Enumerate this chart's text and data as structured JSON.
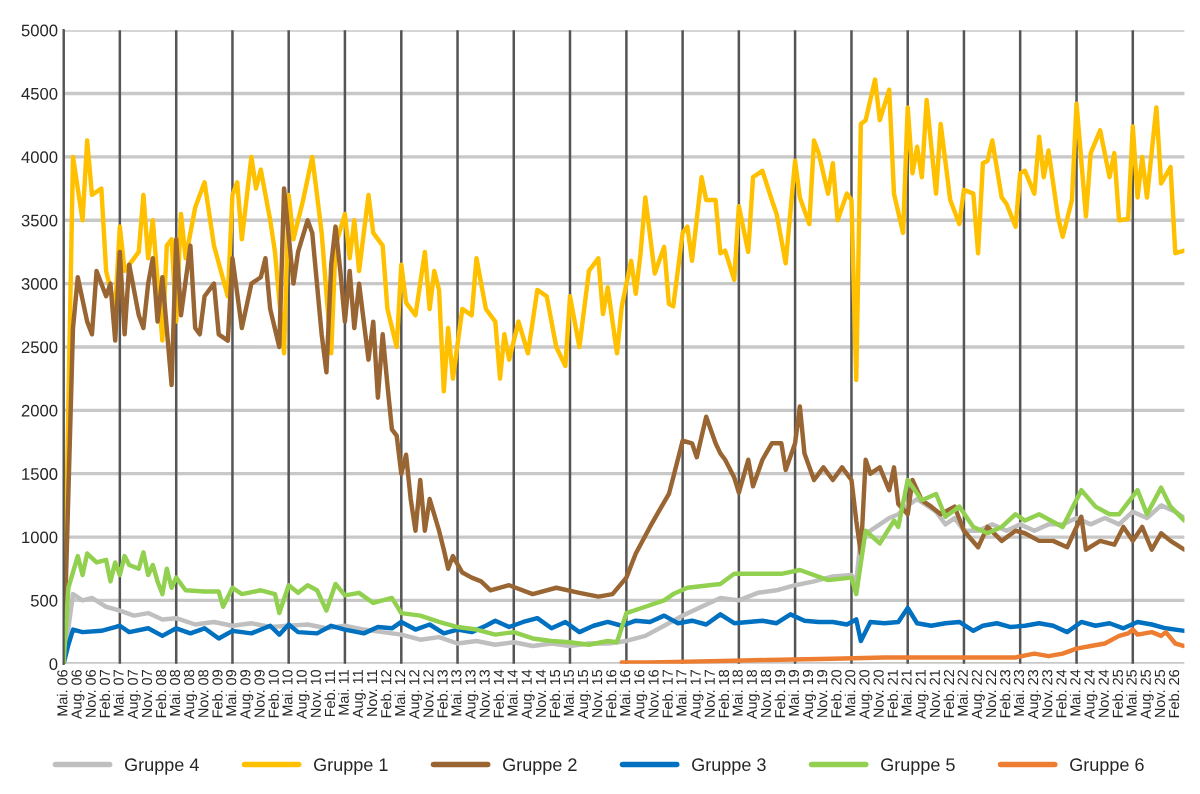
{
  "chart_data": {
    "type": "line",
    "ylim": [
      0,
      5000
    ],
    "yticks": [
      0,
      500,
      1000,
      1500,
      2000,
      2500,
      3000,
      3500,
      4000,
      4500,
      5000
    ],
    "xlim": [
      "2006-05",
      "2026-04"
    ],
    "xticks": [
      {
        "value": "2006-05",
        "label": "Mai. 06"
      },
      {
        "value": "2006-08",
        "label": "Aug. 06"
      },
      {
        "value": "2006-11",
        "label": "Nov. 06"
      },
      {
        "value": "2007-02",
        "label": "Feb. 07"
      },
      {
        "value": "2007-05",
        "label": "Mai. 07"
      },
      {
        "value": "2007-08",
        "label": "Aug. 07"
      },
      {
        "value": "2007-11",
        "label": "Nov. 07"
      },
      {
        "value": "2008-02",
        "label": "Feb. 08"
      },
      {
        "value": "2008-05",
        "label": "Mai. 08"
      },
      {
        "value": "2008-08",
        "label": "Aug. 08"
      },
      {
        "value": "2008-11",
        "label": "Nov. 08"
      },
      {
        "value": "2009-02",
        "label": "Feb. 09"
      },
      {
        "value": "2009-05",
        "label": "Mai. 09"
      },
      {
        "value": "2009-08",
        "label": "Aug. 09"
      },
      {
        "value": "2009-11",
        "label": "Nov. 09"
      },
      {
        "value": "2010-02",
        "label": "Feb. 10"
      },
      {
        "value": "2010-05",
        "label": "Mai. 10"
      },
      {
        "value": "2010-08",
        "label": "Aug. 10"
      },
      {
        "value": "2010-11",
        "label": "Nov. 10"
      },
      {
        "value": "2011-02",
        "label": "Feb. 11"
      },
      {
        "value": "2011-05",
        "label": "Mai. 11"
      },
      {
        "value": "2011-08",
        "label": "Aug. 11"
      },
      {
        "value": "2011-11",
        "label": "Nov. 11"
      },
      {
        "value": "2012-02",
        "label": "Feb. 12"
      },
      {
        "value": "2012-05",
        "label": "Mai. 12"
      },
      {
        "value": "2012-08",
        "label": "Aug. 12"
      },
      {
        "value": "2012-11",
        "label": "Nov. 12"
      },
      {
        "value": "2013-02",
        "label": "Feb. 13"
      },
      {
        "value": "2013-05",
        "label": "Mai. 13"
      },
      {
        "value": "2013-08",
        "label": "Aug. 13"
      },
      {
        "value": "2013-11",
        "label": "Nov. 13"
      },
      {
        "value": "2014-02",
        "label": "Feb. 14"
      },
      {
        "value": "2014-05",
        "label": "Mai. 14"
      },
      {
        "value": "2014-08",
        "label": "Aug. 14"
      },
      {
        "value": "2014-11",
        "label": "Nov. 14"
      },
      {
        "value": "2015-02",
        "label": "Feb. 15"
      },
      {
        "value": "2015-05",
        "label": "Mai. 15"
      },
      {
        "value": "2015-08",
        "label": "Aug. 15"
      },
      {
        "value": "2015-11",
        "label": "Nov. 15"
      },
      {
        "value": "2016-02",
        "label": "Feb. 16"
      },
      {
        "value": "2016-05",
        "label": "Mai. 16"
      },
      {
        "value": "2016-08",
        "label": "Aug. 16"
      },
      {
        "value": "2016-11",
        "label": "Nov. 16"
      },
      {
        "value": "2017-02",
        "label": "Feb. 17"
      },
      {
        "value": "2017-05",
        "label": "Mai. 17"
      },
      {
        "value": "2017-08",
        "label": "Aug. 17"
      },
      {
        "value": "2017-11",
        "label": "Nov. 17"
      },
      {
        "value": "2018-02",
        "label": "Feb. 18"
      },
      {
        "value": "2018-05",
        "label": "Mai. 18"
      },
      {
        "value": "2018-08",
        "label": "Aug. 18"
      },
      {
        "value": "2018-11",
        "label": "Nov. 18"
      },
      {
        "value": "2019-02",
        "label": "Feb. 19"
      },
      {
        "value": "2019-05",
        "label": "Mai. 19"
      },
      {
        "value": "2019-08",
        "label": "Aug. 19"
      },
      {
        "value": "2019-11",
        "label": "Nov. 19"
      },
      {
        "value": "2020-02",
        "label": "Feb. 20"
      },
      {
        "value": "2020-05",
        "label": "Mai. 20"
      },
      {
        "value": "2020-08",
        "label": "Aug. 20"
      },
      {
        "value": "2020-11",
        "label": "Nov. 20"
      },
      {
        "value": "2021-02",
        "label": "Feb. 21"
      },
      {
        "value": "2021-05",
        "label": "Mai. 21"
      },
      {
        "value": "2021-08",
        "label": "Aug. 21"
      },
      {
        "value": "2021-11",
        "label": "Nov. 21"
      },
      {
        "value": "2022-02",
        "label": "Feb. 22"
      },
      {
        "value": "2022-05",
        "label": "Mai. 22"
      },
      {
        "value": "2022-08",
        "label": "Aug. 22"
      },
      {
        "value": "2022-11",
        "label": "Nov. 22"
      },
      {
        "value": "2023-02",
        "label": "Feb. 23"
      },
      {
        "value": "2023-05",
        "label": "Mai. 23"
      },
      {
        "value": "2023-08",
        "label": "Aug. 23"
      },
      {
        "value": "2023-11",
        "label": "Nov. 23"
      },
      {
        "value": "2024-02",
        "label": "Feb. 24"
      },
      {
        "value": "2024-05",
        "label": "Mai. 24"
      },
      {
        "value": "2024-08",
        "label": "Aug. 24"
      },
      {
        "value": "2024-11",
        "label": "Nov. 24"
      },
      {
        "value": "2025-02",
        "label": "Feb. 25"
      },
      {
        "value": "2025-05",
        "label": "Mai. 25"
      },
      {
        "value": "2025-08",
        "label": "Aug. 25"
      },
      {
        "value": "2025-11",
        "label": "Nov. 25"
      },
      {
        "value": "2026-02",
        "label": "Feb. 26"
      }
    ],
    "grid": true,
    "legend": "bottom",
    "marker": "none",
    "line_style": "solid",
    "series": [
      {
        "name": "Gruppe 4",
        "color": "#bfbfbf",
        "x": [
          "2006-05",
          "2006-07",
          "2006-09",
          "2006-11",
          "2007-02",
          "2007-05",
          "2007-08",
          "2007-11",
          "2008-02",
          "2008-05",
          "2008-09",
          "2009-01",
          "2009-05",
          "2009-09",
          "2010-01",
          "2010-05",
          "2010-09",
          "2011-01",
          "2011-05",
          "2011-09",
          "2012-01",
          "2012-05",
          "2012-09",
          "2013-01",
          "2013-05",
          "2013-09",
          "2014-01",
          "2014-05",
          "2014-09",
          "2015-01",
          "2015-05",
          "2015-09",
          "2016-01",
          "2016-05",
          "2016-09",
          "2017-01",
          "2017-05",
          "2017-09",
          "2018-01",
          "2018-05",
          "2018-09",
          "2019-01",
          "2019-05",
          "2019-09",
          "2020-01",
          "2020-05",
          "2020-06",
          "2020-07",
          "2020-09",
          "2020-11",
          "2021-01",
          "2021-03",
          "2021-05",
          "2021-07",
          "2021-09",
          "2021-11",
          "2022-01",
          "2022-03",
          "2022-05",
          "2022-08",
          "2022-11",
          "2023-02",
          "2023-05",
          "2023-08",
          "2023-11",
          "2024-02",
          "2024-05",
          "2024-08",
          "2024-11",
          "2025-02",
          "2025-05",
          "2025-08",
          "2025-11",
          "2026-02",
          "2026-04"
        ],
        "values": [
          0,
          550,
          500,
          520,
          450,
          420,
          380,
          400,
          350,
          360,
          310,
          330,
          300,
          320,
          290,
          300,
          310,
          280,
          300,
          270,
          250,
          230,
          190,
          210,
          160,
          180,
          150,
          170,
          140,
          160,
          140,
          160,
          160,
          180,
          220,
          300,
          380,
          450,
          520,
          500,
          560,
          580,
          620,
          650,
          690,
          700,
          650,
          1000,
          1050,
          1100,
          1150,
          1180,
          1250,
          1300,
          1250,
          1200,
          1100,
          1150,
          1050,
          1050,
          1100,
          1050,
          1100,
          1050,
          1100,
          1100,
          1150,
          1100,
          1150,
          1100,
          1200,
          1150,
          1250,
          1200,
          1150
        ]
      },
      {
        "name": "Gruppe 1",
        "color": "#ffc000",
        "x": [
          "2006-05",
          "2006-07",
          "2006-09",
          "2006-10",
          "2006-11",
          "2007-01",
          "2007-02",
          "2007-04",
          "2007-05",
          "2007-06",
          "2007-09",
          "2007-10",
          "2007-11",
          "2007-12",
          "2008-02",
          "2008-03",
          "2008-04",
          "2008-05",
          "2008-06",
          "2008-07",
          "2008-09",
          "2008-11",
          "2009-01",
          "2009-04",
          "2009-05",
          "2009-06",
          "2009-07",
          "2009-09",
          "2009-10",
          "2009-11",
          "2010-01",
          "2010-02",
          "2010-04",
          "2010-05",
          "2010-06",
          "2010-08",
          "2010-10",
          "2010-11",
          "2010-12",
          "2011-02",
          "2011-03",
          "2011-05",
          "2011-06",
          "2011-07",
          "2011-08",
          "2011-10",
          "2011-11",
          "2012-01",
          "2012-02",
          "2012-04",
          "2012-05",
          "2012-06",
          "2012-08",
          "2012-10",
          "2012-11",
          "2012-12",
          "2013-01",
          "2013-02",
          "2013-03",
          "2013-04",
          "2013-06",
          "2013-08",
          "2013-09",
          "2013-11",
          "2014-01",
          "2014-02",
          "2014-03",
          "2014-04",
          "2014-06",
          "2014-08",
          "2014-10",
          "2014-12",
          "2015-02",
          "2015-04",
          "2015-05",
          "2015-07",
          "2015-09",
          "2015-11",
          "2015-12",
          "2016-01",
          "2016-03",
          "2016-04",
          "2016-06",
          "2016-07",
          "2016-08",
          "2016-09",
          "2016-11",
          "2017-01",
          "2017-02",
          "2017-03",
          "2017-05",
          "2017-06",
          "2017-07",
          "2017-09",
          "2017-10",
          "2017-12",
          "2018-01",
          "2018-02",
          "2018-04",
          "2018-05",
          "2018-07",
          "2018-08",
          "2018-10",
          "2018-12",
          "2019-01",
          "2019-03",
          "2019-05",
          "2019-06",
          "2019-08",
          "2019-09",
          "2019-10",
          "2019-12",
          "2020-01",
          "2020-02",
          "2020-04",
          "2020-05",
          "2020-06",
          "2020-07",
          "2020-08",
          "2020-10",
          "2020-11",
          "2021-01",
          "2021-02",
          "2021-04",
          "2021-05",
          "2021-06",
          "2021-07",
          "2021-08",
          "2021-09",
          "2021-11",
          "2021-12",
          "2022-02",
          "2022-04",
          "2022-05",
          "2022-07",
          "2022-08",
          "2022-09",
          "2022-10",
          "2022-11",
          "2023-01",
          "2023-02",
          "2023-04",
          "2023-05",
          "2023-06",
          "2023-08",
          "2023-09",
          "2023-10",
          "2023-11",
          "2024-01",
          "2024-02",
          "2024-04",
          "2024-05",
          "2024-07",
          "2024-08",
          "2024-10",
          "2024-12",
          "2025-01",
          "2025-02",
          "2025-04",
          "2025-05",
          "2025-06",
          "2025-07",
          "2025-08",
          "2025-10",
          "2025-11",
          "2026-01",
          "2026-02",
          "2026-04"
        ],
        "values": [
          0,
          4000,
          3500,
          4130,
          3700,
          3750,
          3100,
          2800,
          3450,
          3100,
          3250,
          3700,
          3200,
          3500,
          2550,
          3300,
          3350,
          2700,
          3550,
          3200,
          3600,
          3800,
          3300,
          2900,
          3700,
          3800,
          3350,
          4000,
          3750,
          3900,
          3500,
          3250,
          2450,
          3700,
          3350,
          3650,
          4000,
          3700,
          3400,
          2450,
          3300,
          3550,
          3200,
          3500,
          3100,
          3700,
          3400,
          3300,
          2800,
          2500,
          3150,
          2850,
          2750,
          3250,
          2800,
          3100,
          2950,
          2150,
          2650,
          2250,
          2800,
          2750,
          3200,
          2800,
          2700,
          2250,
          2600,
          2400,
          2700,
          2450,
          2950,
          2900,
          2500,
          2350,
          2900,
          2500,
          3100,
          3200,
          2760,
          2970,
          2450,
          2820,
          3180,
          2920,
          3240,
          3680,
          3080,
          3290,
          2840,
          2820,
          3400,
          3450,
          3180,
          3840,
          3660,
          3660,
          3240,
          3260,
          3030,
          3610,
          3250,
          3840,
          3890,
          3660,
          3550,
          3160,
          3970,
          3680,
          3470,
          4130,
          4030,
          3710,
          3950,
          3500,
          3710,
          3660,
          2240,
          4260,
          4290,
          4610,
          4290,
          4530,
          3710,
          3400,
          4390,
          3870,
          4080,
          3840,
          4450,
          3710,
          4260,
          3660,
          3470,
          3740,
          3710,
          3240,
          3950,
          3970,
          4130,
          3680,
          3630,
          3450,
          3870,
          3890,
          3710,
          4160,
          3840,
          4050,
          3530,
          3370,
          3660,
          4420,
          3530,
          4030,
          4210,
          3840,
          4030,
          3500,
          3510,
          4240,
          3680,
          4000,
          3680,
          4390,
          3790,
          3920,
          3240,
          3260
        ]
      },
      {
        "name": "Gruppe 2",
        "color": "#996633",
        "x": [
          "2006-05",
          "2006-07",
          "2006-08",
          "2006-10",
          "2006-11",
          "2006-12",
          "2007-02",
          "2007-03",
          "2007-04",
          "2007-05",
          "2007-06",
          "2007-07",
          "2007-09",
          "2007-10",
          "2007-11",
          "2007-12",
          "2008-01",
          "2008-02",
          "2008-04",
          "2008-05",
          "2008-06",
          "2008-08",
          "2008-09",
          "2008-10",
          "2008-11",
          "2009-01",
          "2009-02",
          "2009-04",
          "2009-05",
          "2009-07",
          "2009-09",
          "2009-11",
          "2009-12",
          "2010-01",
          "2010-03",
          "2010-04",
          "2010-06",
          "2010-07",
          "2010-09",
          "2010-10",
          "2010-12",
          "2011-01",
          "2011-02",
          "2011-03",
          "2011-04",
          "2011-05",
          "2011-06",
          "2011-07",
          "2011-08",
          "2011-10",
          "2011-11",
          "2011-12",
          "2012-01",
          "2012-02",
          "2012-03",
          "2012-04",
          "2012-05",
          "2012-06",
          "2012-07",
          "2012-08",
          "2012-09",
          "2012-10",
          "2012-11",
          "2013-01",
          "2013-02",
          "2013-03",
          "2013-04",
          "2013-06",
          "2013-08",
          "2013-10",
          "2013-12",
          "2014-04",
          "2014-09",
          "2015-02",
          "2015-07",
          "2015-11",
          "2016-02",
          "2016-05",
          "2016-07",
          "2016-10",
          "2016-12",
          "2017-02",
          "2017-03",
          "2017-05",
          "2017-07",
          "2017-08",
          "2017-10",
          "2017-12",
          "2018-01",
          "2018-02",
          "2018-04",
          "2018-05",
          "2018-07",
          "2018-08",
          "2018-10",
          "2018-12",
          "2019-02",
          "2019-03",
          "2019-05",
          "2019-06",
          "2019-07",
          "2019-09",
          "2019-11",
          "2020-01",
          "2020-03",
          "2020-05",
          "2020-06",
          "2020-07",
          "2020-08",
          "2020-09",
          "2020-11",
          "2021-01",
          "2021-02",
          "2021-03",
          "2021-05",
          "2021-06",
          "2021-08",
          "2021-10",
          "2021-12",
          "2022-03",
          "2022-05",
          "2022-08",
          "2022-10",
          "2023-01",
          "2023-04",
          "2023-06",
          "2023-09",
          "2023-12",
          "2024-03",
          "2024-06",
          "2024-07",
          "2024-10",
          "2025-01",
          "2025-03",
          "2025-05",
          "2025-07",
          "2025-09",
          "2025-11",
          "2026-01",
          "2026-04"
        ],
        "values": [
          0,
          2650,
          3050,
          2700,
          2600,
          3100,
          2900,
          3000,
          2550,
          3250,
          2600,
          3150,
          2750,
          2650,
          3000,
          3200,
          2700,
          3050,
          2200,
          3350,
          2750,
          3300,
          2650,
          2600,
          2900,
          3000,
          2600,
          2550,
          3200,
          2650,
          3000,
          3050,
          3200,
          2800,
          2500,
          3750,
          3000,
          3250,
          3500,
          3400,
          2600,
          2300,
          3150,
          3450,
          3100,
          2700,
          3100,
          2650,
          3000,
          2400,
          2700,
          2100,
          2600,
          2200,
          1850,
          1800,
          1500,
          1650,
          1300,
          1050,
          1450,
          1050,
          1300,
          1050,
          900,
          750,
          850,
          720,
          680,
          650,
          580,
          620,
          550,
          600,
          560,
          530,
          550,
          680,
          870,
          1080,
          1210,
          1340,
          1470,
          1760,
          1740,
          1630,
          1950,
          1740,
          1660,
          1610,
          1470,
          1350,
          1610,
          1400,
          1610,
          1740,
          1740,
          1530,
          1740,
          2030,
          1660,
          1450,
          1550,
          1450,
          1550,
          1450,
          1130,
          870,
          1610,
          1500,
          1550,
          1370,
          1550,
          1260,
          1180,
          1450,
          1290,
          1240,
          1180,
          1240,
          1050,
          920,
          1080,
          970,
          1050,
          1030,
          970,
          970,
          920,
          1160,
          900,
          970,
          940,
          1080,
          970,
          1080,
          900,
          1030,
          970,
          900
        ]
      },
      {
        "name": "Gruppe 3",
        "color": "#0070c0",
        "x": [
          "2006-05",
          "2006-06",
          "2006-07",
          "2006-09",
          "2007-01",
          "2007-04",
          "2007-05",
          "2007-07",
          "2007-11",
          "2008-02",
          "2008-05",
          "2008-08",
          "2008-11",
          "2009-02",
          "2009-05",
          "2009-09",
          "2010-01",
          "2010-03",
          "2010-05",
          "2010-07",
          "2010-11",
          "2011-02",
          "2011-05",
          "2011-09",
          "2011-12",
          "2012-03",
          "2012-05",
          "2012-08",
          "2012-11",
          "2013-02",
          "2013-05",
          "2013-08",
          "2013-11",
          "2014-01",
          "2014-04",
          "2014-07",
          "2014-10",
          "2015-01",
          "2015-04",
          "2015-07",
          "2015-10",
          "2016-01",
          "2016-04",
          "2016-07",
          "2016-10",
          "2017-01",
          "2017-04",
          "2017-07",
          "2017-10",
          "2018-01",
          "2018-04",
          "2018-07",
          "2018-10",
          "2019-01",
          "2019-04",
          "2019-07",
          "2019-10",
          "2020-01",
          "2020-04",
          "2020-06",
          "2020-07",
          "2020-09",
          "2020-12",
          "2021-03",
          "2021-05",
          "2021-07",
          "2021-10",
          "2022-01",
          "2022-04",
          "2022-07",
          "2022-09",
          "2022-12",
          "2023-03",
          "2023-06",
          "2023-09",
          "2023-12",
          "2024-03",
          "2024-06",
          "2024-09",
          "2024-12",
          "2025-03",
          "2025-06",
          "2025-09",
          "2025-12",
          "2026-04"
        ],
        "values": [
          0,
          150,
          270,
          250,
          260,
          290,
          300,
          250,
          280,
          220,
          280,
          240,
          280,
          200,
          260,
          240,
          300,
          230,
          310,
          250,
          240,
          300,
          270,
          240,
          290,
          280,
          330,
          270,
          310,
          240,
          270,
          250,
          300,
          340,
          290,
          330,
          360,
          280,
          330,
          250,
          300,
          330,
          300,
          340,
          330,
          380,
          320,
          340,
          310,
          390,
          320,
          330,
          340,
          320,
          390,
          340,
          330,
          330,
          310,
          350,
          180,
          330,
          320,
          330,
          440,
          320,
          300,
          320,
          330,
          260,
          300,
          320,
          290,
          300,
          320,
          300,
          250,
          330,
          300,
          320,
          280,
          330,
          310,
          280,
          260
        ]
      },
      {
        "name": "Gruppe 5",
        "color": "#92d050",
        "x": [
          "2006-05",
          "2006-06",
          "2006-08",
          "2006-09",
          "2006-10",
          "2006-12",
          "2007-02",
          "2007-03",
          "2007-04",
          "2007-05",
          "2007-06",
          "2007-07",
          "2007-09",
          "2007-10",
          "2007-11",
          "2007-12",
          "2008-01",
          "2008-02",
          "2008-03",
          "2008-04",
          "2008-05",
          "2008-07",
          "2008-11",
          "2009-02",
          "2009-03",
          "2009-05",
          "2009-07",
          "2009-11",
          "2010-02",
          "2010-03",
          "2010-05",
          "2010-07",
          "2010-09",
          "2010-11",
          "2011-01",
          "2011-03",
          "2011-05",
          "2011-08",
          "2011-11",
          "2012-03",
          "2012-05",
          "2012-09",
          "2013-01",
          "2013-05",
          "2013-09",
          "2014-01",
          "2014-05",
          "2014-09",
          "2015-01",
          "2015-05",
          "2015-09",
          "2016-01",
          "2016-03",
          "2016-05",
          "2016-09",
          "2017-01",
          "2017-03",
          "2017-06",
          "2018-01",
          "2018-04",
          "2019-02",
          "2019-06",
          "2019-12",
          "2020-05",
          "2020-06",
          "2020-08",
          "2020-11",
          "2021-02",
          "2021-03",
          "2021-05",
          "2021-08",
          "2021-11",
          "2022-01",
          "2022-04",
          "2022-07",
          "2022-10",
          "2023-01",
          "2023-04",
          "2023-06",
          "2023-09",
          "2024-02",
          "2024-06",
          "2024-09",
          "2024-12",
          "2025-02",
          "2025-06",
          "2025-08",
          "2025-11",
          "2026-01",
          "2026-04"
        ],
        "values": [
          0,
          600,
          850,
          700,
          870,
          800,
          820,
          650,
          800,
          700,
          850,
          780,
          750,
          880,
          700,
          780,
          650,
          550,
          750,
          600,
          680,
          580,
          570,
          570,
          450,
          600,
          550,
          580,
          550,
          400,
          620,
          560,
          620,
          580,
          420,
          630,
          540,
          560,
          480,
          520,
          400,
          380,
          330,
          290,
          270,
          230,
          250,
          200,
          180,
          170,
          150,
          180,
          170,
          400,
          450,
          500,
          550,
          600,
          630,
          710,
          710,
          740,
          660,
          680,
          550,
          1050,
          950,
          1130,
          1080,
          1450,
          1290,
          1340,
          1160,
          1240,
          1080,
          1030,
          1080,
          1180,
          1130,
          1180,
          1080,
          1370,
          1240,
          1180,
          1180,
          1370,
          1180,
          1390,
          1240,
          1130
        ]
      },
      {
        "name": "Gruppe 6",
        "color": "#ed7d31",
        "x": [
          "2016-04",
          "2016-10",
          "2017-11",
          "2018-11",
          "2020-01",
          "2020-12",
          "2021-10",
          "2022-08",
          "2023-04",
          "2023-08",
          "2023-11",
          "2024-02",
          "2024-05",
          "2024-08",
          "2024-11",
          "2025-02",
          "2025-04",
          "2025-05",
          "2025-06",
          "2025-09",
          "2025-11",
          "2025-12",
          "2026-02",
          "2026-04"
        ],
        "values": [
          10,
          10,
          20,
          30,
          40,
          50,
          50,
          50,
          50,
          80,
          60,
          80,
          120,
          140,
          160,
          220,
          240,
          270,
          230,
          250,
          220,
          250,
          160,
          140
        ]
      }
    ]
  }
}
